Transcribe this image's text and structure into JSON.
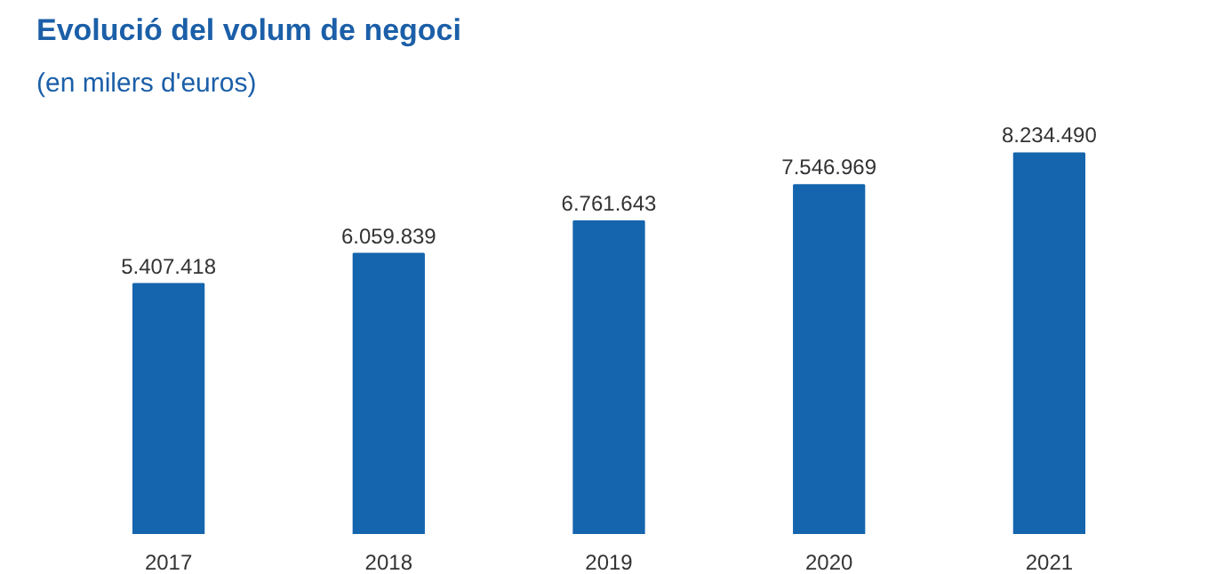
{
  "chart_data": {
    "type": "bar",
    "title": "Evolució del volum de negoci",
    "subtitle": "(en milers d'euros)",
    "categories": [
      "2017",
      "2018",
      "2019",
      "2020",
      "2021"
    ],
    "values": [
      5407418,
      6059839,
      6761643,
      7546969,
      8234490
    ],
    "value_labels": [
      "5.407.418",
      "6.059.839",
      "6.761.643",
      "7.546.969",
      "8.234.490"
    ],
    "color": "#1565ae",
    "grid": false
  }
}
